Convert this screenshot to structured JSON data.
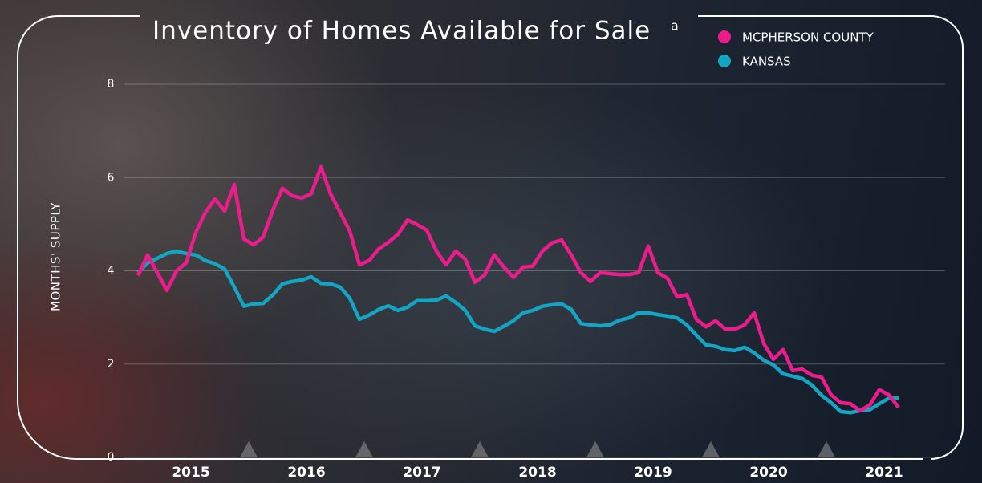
{
  "chart_data": {
    "type": "line",
    "title": "Inventory of Homes Available for Sale",
    "title_note": "a",
    "y_label": "MONTHS' SUPPLY",
    "ylim": [
      0,
      8
    ],
    "yticks": [
      0,
      2,
      4,
      6,
      8
    ],
    "grid": true,
    "legend": "top-right",
    "categories": [
      null,
      null,
      null,
      null,
      null,
      null,
      "2015",
      null,
      null,
      null,
      null,
      null,
      null,
      null,
      null,
      null,
      null,
      null,
      "2016",
      null,
      null,
      null,
      null,
      null,
      null,
      null,
      null,
      null,
      null,
      null,
      "2017",
      null,
      null,
      null,
      null,
      null,
      null,
      null,
      null,
      null,
      null,
      null,
      "2018",
      null,
      null,
      null,
      null,
      null,
      null,
      null,
      null,
      null,
      null,
      null,
      "2019",
      null,
      null,
      null,
      null,
      null,
      null,
      null,
      null,
      null,
      null,
      null,
      "2020",
      null,
      null,
      null,
      null,
      null,
      null,
      null,
      null,
      null,
      null,
      null,
      "2021",
      null
    ],
    "series": [
      {
        "name": "MCPHERSON COUNTY",
        "color": "#ec1c8c",
        "values": [
          3.9,
          4.34,
          3.96,
          3.58,
          4.0,
          4.17,
          4.82,
          5.25,
          5.54,
          5.28,
          5.85,
          4.68,
          4.56,
          4.72,
          5.3,
          5.77,
          5.61,
          5.56,
          5.65,
          6.23,
          5.65,
          5.25,
          4.85,
          4.13,
          4.22,
          4.47,
          4.61,
          4.78,
          5.09,
          4.99,
          4.87,
          4.42,
          4.13,
          4.42,
          4.25,
          3.75,
          3.91,
          4.34,
          4.08,
          3.86,
          4.08,
          4.1,
          4.42,
          4.6,
          4.66,
          4.34,
          3.96,
          3.77,
          3.96,
          3.94,
          3.92,
          3.92,
          3.96,
          4.53,
          3.96,
          3.84,
          3.44,
          3.49,
          2.96,
          2.8,
          2.93,
          2.75,
          2.75,
          2.84,
          3.1,
          2.44,
          2.1,
          2.31,
          1.86,
          1.89,
          1.76,
          1.72,
          1.34,
          1.17,
          1.15,
          1.0,
          1.12,
          1.45,
          1.34,
          1.07
        ]
      },
      {
        "name": "KANSAS",
        "color": "#13a6c4",
        "values": [
          3.96,
          4.17,
          4.27,
          4.37,
          4.42,
          4.37,
          4.34,
          4.22,
          4.15,
          4.04,
          3.65,
          3.24,
          3.29,
          3.3,
          3.48,
          3.72,
          3.77,
          3.8,
          3.87,
          3.73,
          3.72,
          3.65,
          3.41,
          2.96,
          3.05,
          3.17,
          3.25,
          3.15,
          3.22,
          3.36,
          3.36,
          3.37,
          3.46,
          3.32,
          3.15,
          2.82,
          2.75,
          2.7,
          2.81,
          2.93,
          3.1,
          3.15,
          3.24,
          3.27,
          3.29,
          3.17,
          2.87,
          2.84,
          2.82,
          2.84,
          2.94,
          2.99,
          3.1,
          3.1,
          3.06,
          3.03,
          2.99,
          2.84,
          2.62,
          2.41,
          2.38,
          2.31,
          2.29,
          2.36,
          2.24,
          2.08,
          1.98,
          1.79,
          1.74,
          1.69,
          1.55,
          1.33,
          1.17,
          0.98,
          0.96,
          1.0,
          1.02,
          1.15,
          1.27,
          1.27
        ]
      }
    ]
  }
}
